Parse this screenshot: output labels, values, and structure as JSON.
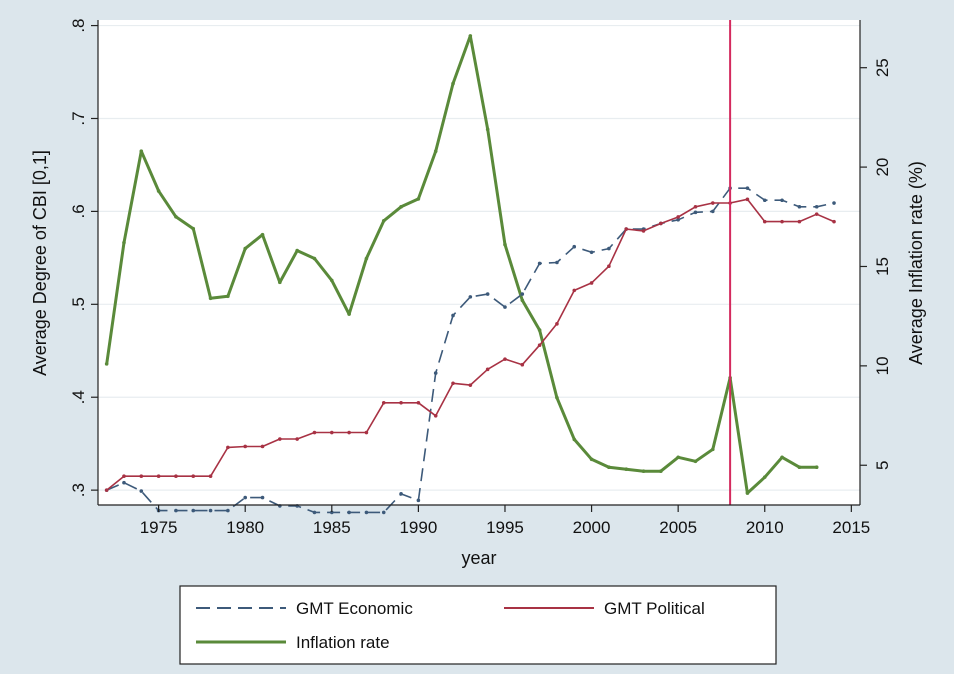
{
  "chart_data": {
    "type": "line",
    "xlabel": "year",
    "ylabel_left": "Average Degree of CBI [0,1]",
    "ylabel_right": "Average Inflation rate (%)",
    "xlim": [
      1971.5,
      2015.5
    ],
    "ylim_left": [
      0.284,
      0.806
    ],
    "ylim_right": [
      3.0,
      27.4
    ],
    "x_ticks": [
      1975,
      1980,
      1985,
      1990,
      1995,
      2000,
      2005,
      2010,
      2015
    ],
    "x_tick_labels": [
      "1975",
      "1980",
      "1985",
      "1990",
      "1995",
      "2000",
      "2005",
      "2010",
      "2015"
    ],
    "y_left_ticks": [
      0.3,
      0.4,
      0.5,
      0.6,
      0.7,
      0.8
    ],
    "y_left_tick_labels": [
      ".3",
      ".4",
      ".5",
      ".6",
      ".7",
      ".8"
    ],
    "y_right_ticks": [
      5,
      10,
      15,
      20,
      25
    ],
    "y_right_tick_labels": [
      "5",
      "10",
      "15",
      "20",
      "25"
    ],
    "grid": "horizontal",
    "legend": {
      "position": "bottom",
      "entries": [
        "GMT Economic",
        "GMT Political",
        "Inflation rate"
      ]
    },
    "colors": {
      "economic": "#3d5a7a",
      "political": "#a83244",
      "inflation": "#5a8a3a",
      "vline": "#d42a5e",
      "plot_bg": "#ffffff",
      "outer_bg": "#dce6ec"
    },
    "vline_x": 2008,
    "series": [
      {
        "name": "GMT Economic",
        "axis": "left",
        "style": "dashed",
        "x": [
          1972,
          1973,
          1974,
          1975,
          1976,
          1977,
          1978,
          1979,
          1980,
          1981,
          1982,
          1983,
          1984,
          1985,
          1986,
          1987,
          1988,
          1989,
          1990,
          1991,
          1992,
          1993,
          1994,
          1995,
          1996,
          1997,
          1998,
          1999,
          2000,
          2001,
          2002,
          2003,
          2004,
          2005,
          2006,
          2007,
          2008,
          2009,
          2010,
          2011,
          2012,
          2013,
          2014
        ],
        "values": [
          0.3,
          0.308,
          0.299,
          0.278,
          0.278,
          0.278,
          0.278,
          0.278,
          0.292,
          0.292,
          0.283,
          0.283,
          0.276,
          0.276,
          0.276,
          0.276,
          0.276,
          0.296,
          0.289,
          0.426,
          0.488,
          0.508,
          0.511,
          0.497,
          0.511,
          0.544,
          0.545,
          0.562,
          0.556,
          0.56,
          0.581,
          0.581,
          0.587,
          0.591,
          0.599,
          0.6,
          0.625,
          0.625,
          0.612,
          0.612,
          0.605,
          0.605,
          0.609
        ]
      },
      {
        "name": "GMT Political",
        "axis": "left",
        "style": "solid",
        "x": [
          1972,
          1973,
          1974,
          1975,
          1976,
          1977,
          1978,
          1979,
          1980,
          1981,
          1982,
          1983,
          1984,
          1985,
          1986,
          1987,
          1988,
          1989,
          1990,
          1991,
          1992,
          1993,
          1994,
          1995,
          1996,
          1997,
          1998,
          1999,
          2000,
          2001,
          2002,
          2003,
          2004,
          2005,
          2006,
          2007,
          2008,
          2009,
          2010,
          2011,
          2012,
          2013,
          2014
        ],
        "values": [
          0.3,
          0.315,
          0.315,
          0.315,
          0.315,
          0.315,
          0.315,
          0.346,
          0.347,
          0.347,
          0.355,
          0.355,
          0.362,
          0.362,
          0.362,
          0.362,
          0.394,
          0.394,
          0.394,
          0.38,
          0.415,
          0.413,
          0.43,
          0.441,
          0.435,
          0.456,
          0.479,
          0.515,
          0.523,
          0.541,
          0.581,
          0.579,
          0.587,
          0.594,
          0.605,
          0.609,
          0.609,
          0.613,
          0.589,
          0.589,
          0.589,
          0.597,
          0.589
        ]
      },
      {
        "name": "Inflation rate",
        "axis": "right",
        "style": "solid",
        "x": [
          1972,
          1973,
          1974,
          1975,
          1976,
          1977,
          1978,
          1979,
          1980,
          1981,
          1982,
          1983,
          1984,
          1985,
          1986,
          1987,
          1988,
          1989,
          1990,
          1991,
          1992,
          1993,
          1994,
          1995,
          1996,
          1997,
          1998,
          1999,
          2000,
          2001,
          2002,
          2003,
          2004,
          2005,
          2006,
          2007,
          2008,
          2009,
          2010,
          2011,
          2012,
          2013
        ],
        "values": [
          10.1,
          16.2,
          20.8,
          18.8,
          17.5,
          16.9,
          13.4,
          13.5,
          15.9,
          16.6,
          14.2,
          15.8,
          15.4,
          14.3,
          12.6,
          15.4,
          17.3,
          18.0,
          18.4,
          20.8,
          24.2,
          26.6,
          21.9,
          16.1,
          13.3,
          11.8,
          8.4,
          6.3,
          5.3,
          4.9,
          4.8,
          4.7,
          4.7,
          5.4,
          5.2,
          5.8,
          9.4,
          3.6,
          4.4,
          5.4,
          4.9,
          4.9
        ]
      }
    ]
  }
}
